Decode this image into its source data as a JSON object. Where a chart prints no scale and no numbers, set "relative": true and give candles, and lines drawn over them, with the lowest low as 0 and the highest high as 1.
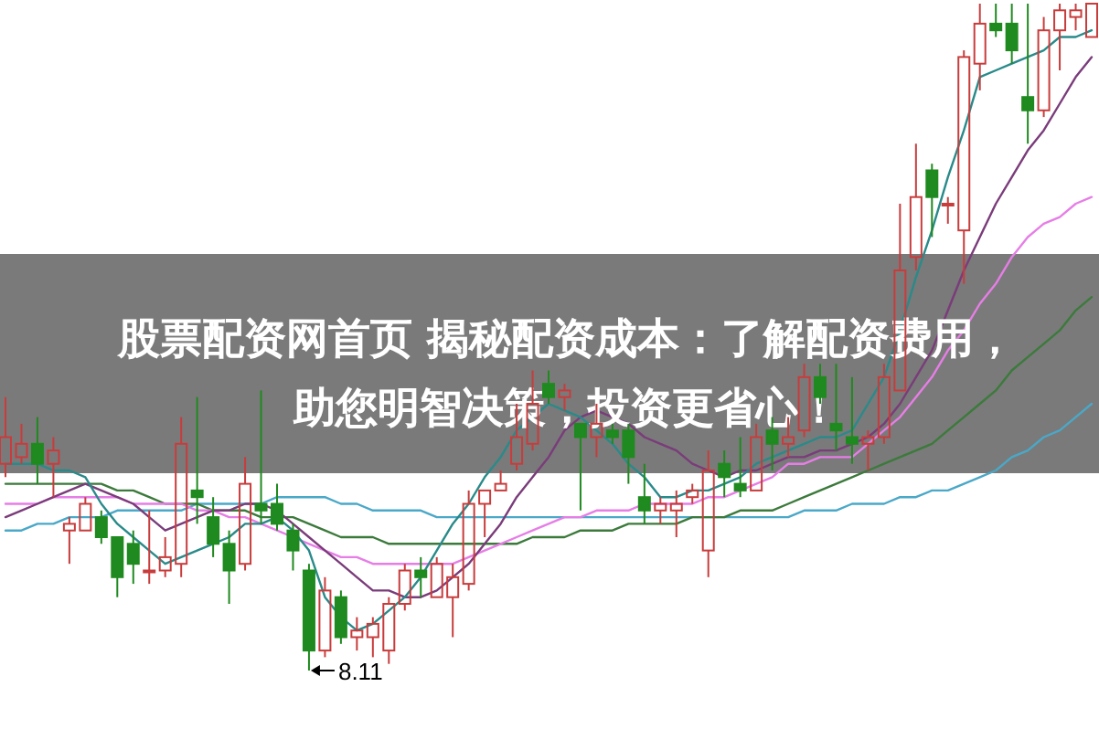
{
  "chart_data": {
    "type": "candlestick",
    "relative": true,
    "title": "股票配资网首页 揭秘配资成本：了解配资费用，助您明智决策，投资更省心！",
    "categories": [
      null,
      null,
      null,
      null,
      null,
      null,
      null,
      null,
      null,
      null,
      null,
      null,
      null,
      null,
      null,
      null,
      null,
      null,
      null,
      null,
      null,
      null,
      null,
      null,
      null,
      null,
      null,
      null,
      null,
      null,
      null,
      null,
      null,
      null,
      null,
      null,
      null,
      null,
      null,
      null,
      null,
      null,
      null,
      null,
      null,
      null,
      null,
      null,
      null,
      null,
      null,
      null,
      null,
      null,
      null,
      null,
      null,
      null,
      null,
      null,
      null,
      null,
      null,
      null,
      null,
      null,
      null,
      null,
      null
    ],
    "ohlc": [
      [
        0.31,
        0.41,
        0.29,
        0.35
      ],
      [
        0.32,
        0.37,
        0.31,
        0.34
      ],
      [
        0.34,
        0.38,
        0.28,
        0.31
      ],
      [
        0.31,
        0.35,
        0.26,
        0.33
      ],
      [
        0.21,
        0.23,
        0.16,
        0.22
      ],
      [
        0.21,
        0.26,
        0.21,
        0.25
      ],
      [
        0.23,
        0.24,
        0.19,
        0.2
      ],
      [
        0.2,
        0.2,
        0.11,
        0.14
      ],
      [
        0.19,
        0.21,
        0.13,
        0.16
      ],
      [
        0.15,
        0.24,
        0.13,
        0.15
      ],
      [
        0.15,
        0.2,
        0.14,
        0.17
      ],
      [
        0.16,
        0.38,
        0.14,
        0.34
      ],
      [
        0.27,
        0.41,
        0.22,
        0.26
      ],
      [
        0.23,
        0.26,
        0.17,
        0.19
      ],
      [
        0.19,
        0.21,
        0.1,
        0.15
      ],
      [
        0.16,
        0.32,
        0.15,
        0.28
      ],
      [
        0.25,
        0.42,
        0.22,
        0.24
      ],
      [
        0.25,
        0.28,
        0.21,
        0.22
      ],
      [
        0.21,
        0.22,
        0.15,
        0.18
      ],
      [
        0.15,
        0.16,
        0,
        0.03
      ],
      [
        0.03,
        0.14,
        0.02,
        0.12
      ],
      [
        0.11,
        0.12,
        0.04,
        0.05
      ],
      [
        0.05,
        0.08,
        0.03,
        0.06
      ],
      [
        0.05,
        0.08,
        0.02,
        0.07
      ],
      [
        0.03,
        0.11,
        0.01,
        0.1
      ],
      [
        0.1,
        0.16,
        0.09,
        0.15
      ],
      [
        0.15,
        0.17,
        0.11,
        0.14
      ],
      [
        0.11,
        0.17,
        0.11,
        0.16
      ],
      [
        0.11,
        0.16,
        0.05,
        0.14
      ],
      [
        0.13,
        0.27,
        0.12,
        0.25
      ],
      [
        0.25,
        0.27,
        0.2,
        0.27
      ],
      [
        0.27,
        0.3,
        0.27,
        0.28
      ],
      [
        0.31,
        0.4,
        0.3,
        0.35
      ],
      [
        0.34,
        0.45,
        0.33,
        0.4
      ],
      [
        0.43,
        0.45,
        0.4,
        0.41
      ],
      [
        0.41,
        0.43,
        0.39,
        0.42
      ],
      [
        0.37,
        0.37,
        0.24,
        0.35
      ],
      [
        0.35,
        0.4,
        0.32,
        0.37
      ],
      [
        0.36,
        0.37,
        0.34,
        0.35
      ],
      [
        0.36,
        0.37,
        0.28,
        0.32
      ],
      [
        0.26,
        0.31,
        0.22,
        0.24
      ],
      [
        0.24,
        0.26,
        0.22,
        0.25
      ],
      [
        0.24,
        0.27,
        0.2,
        0.25
      ],
      [
        0.26,
        0.28,
        0.25,
        0.27
      ],
      [
        0.18,
        0.33,
        0.14,
        0.3
      ],
      [
        0.31,
        0.33,
        0.26,
        0.29
      ],
      [
        0.28,
        0.35,
        0.26,
        0.27
      ],
      [
        0.27,
        0.37,
        0.27,
        0.35
      ],
      [
        0.36,
        0.38,
        0.3,
        0.34
      ],
      [
        0.34,
        0.38,
        0.32,
        0.35
      ],
      [
        0.36,
        0.46,
        0.35,
        0.44
      ],
      [
        0.44,
        0.46,
        0.4,
        0.41
      ],
      [
        0.37,
        0.46,
        0.33,
        0.36
      ],
      [
        0.35,
        0.44,
        0.31,
        0.34
      ],
      [
        0.34,
        0.36,
        0.3,
        0.35
      ],
      [
        0.35,
        0.46,
        0.34,
        0.44
      ],
      [
        0.42,
        0.7,
        0.42,
        0.6
      ],
      [
        0.62,
        0.79,
        0.6,
        0.71
      ],
      [
        0.75,
        0.76,
        0.65,
        0.71
      ],
      [
        0.7,
        0.71,
        0.67,
        0.7
      ],
      [
        0.66,
        0.93,
        0.58,
        0.92
      ],
      [
        0.91,
        1.0,
        0.87,
        0.97
      ],
      [
        0.97,
        1.0,
        0.95,
        0.96
      ],
      [
        0.97,
        1.0,
        0.91,
        0.93
      ],
      [
        0.86,
        1.0,
        0.79,
        0.84
      ],
      [
        0.84,
        0.98,
        0.83,
        0.96
      ],
      [
        0.96,
        1.0,
        0.9,
        0.99
      ],
      [
        0.98,
        1.0,
        0.96,
        0.99
      ],
      [
        0.95,
        1.0,
        0.95,
        1.0
      ]
    ],
    "series": [
      {
        "type": "line",
        "color": "#4aa8c8",
        "values": [
          0.21,
          0.21,
          0.22,
          0.22,
          0.23,
          0.23,
          0.23,
          0.24,
          0.24,
          0.24,
          0.24,
          0.24,
          0.25,
          0.25,
          0.25,
          0.25,
          0.25,
          0.26,
          0.26,
          0.26,
          0.26,
          0.25,
          0.25,
          0.24,
          0.24,
          0.24,
          0.24,
          0.23,
          0.23,
          0.23,
          0.23,
          0.23,
          0.23,
          0.23,
          0.23,
          0.23,
          0.23,
          0.23,
          0.23,
          0.23,
          0.23,
          0.23,
          0.23,
          0.23,
          0.23,
          0.23,
          0.23,
          0.23,
          0.23,
          0.23,
          0.24,
          0.24,
          0.24,
          0.25,
          0.25,
          0.25,
          0.26,
          0.26,
          0.27,
          0.27,
          0.28,
          0.29,
          0.3,
          0.32,
          0.33,
          0.35,
          0.36,
          0.38,
          0.4
        ]
      },
      {
        "type": "line",
        "color": "#3c7a3c",
        "values": [
          0.28,
          0.28,
          0.28,
          0.28,
          0.28,
          0.28,
          0.28,
          0.27,
          0.27,
          0.26,
          0.25,
          0.25,
          0.25,
          0.24,
          0.24,
          0.24,
          0.23,
          0.23,
          0.23,
          0.22,
          0.21,
          0.2,
          0.2,
          0.2,
          0.19,
          0.19,
          0.19,
          0.19,
          0.19,
          0.19,
          0.19,
          0.19,
          0.19,
          0.2,
          0.2,
          0.2,
          0.21,
          0.21,
          0.21,
          0.22,
          0.22,
          0.22,
          0.22,
          0.23,
          0.23,
          0.23,
          0.24,
          0.24,
          0.24,
          0.25,
          0.26,
          0.27,
          0.28,
          0.29,
          0.3,
          0.31,
          0.32,
          0.33,
          0.34,
          0.36,
          0.38,
          0.4,
          0.42,
          0.45,
          0.47,
          0.49,
          0.51,
          0.54,
          0.56
        ]
      },
      {
        "type": "line",
        "color": "#e67ee6",
        "values": [
          0.25,
          0.25,
          0.25,
          0.26,
          0.26,
          0.26,
          0.26,
          0.26,
          0.25,
          0.25,
          0.25,
          0.25,
          0.24,
          0.24,
          0.23,
          0.23,
          0.22,
          0.21,
          0.2,
          0.19,
          0.18,
          0.17,
          0.17,
          0.16,
          0.16,
          0.16,
          0.16,
          0.16,
          0.16,
          0.17,
          0.18,
          0.19,
          0.2,
          0.21,
          0.22,
          0.23,
          0.23,
          0.24,
          0.24,
          0.24,
          0.25,
          0.25,
          0.25,
          0.25,
          0.26,
          0.26,
          0.27,
          0.28,
          0.29,
          0.31,
          0.31,
          0.32,
          0.32,
          0.32,
          0.34,
          0.36,
          0.38,
          0.41,
          0.44,
          0.48,
          0.51,
          0.55,
          0.58,
          0.62,
          0.65,
          0.67,
          0.68,
          0.7,
          0.71
        ]
      },
      {
        "type": "line",
        "color": "#7a3c7a",
        "values": [
          0.23,
          0.24,
          0.25,
          0.26,
          0.27,
          0.28,
          0.27,
          0.26,
          0.25,
          0.23,
          0.21,
          0.22,
          0.23,
          0.24,
          0.24,
          0.25,
          0.25,
          0.24,
          0.22,
          0.2,
          0.18,
          0.16,
          0.14,
          0.12,
          0.12,
          0.11,
          0.11,
          0.12,
          0.14,
          0.16,
          0.19,
          0.22,
          0.26,
          0.29,
          0.32,
          0.36,
          0.38,
          0.39,
          0.38,
          0.37,
          0.35,
          0.34,
          0.33,
          0.31,
          0.3,
          0.29,
          0.3,
          0.3,
          0.31,
          0.32,
          0.32,
          0.33,
          0.33,
          0.34,
          0.35,
          0.37,
          0.4,
          0.44,
          0.48,
          0.54,
          0.6,
          0.65,
          0.7,
          0.74,
          0.78,
          0.81,
          0.85,
          0.89,
          0.92
        ]
      },
      {
        "type": "line",
        "color": "#2a8a8a",
        "values": [
          0.31,
          0.31,
          0.31,
          0.3,
          0.3,
          0.29,
          0.25,
          0.22,
          0.2,
          0.18,
          0.16,
          0.17,
          0.18,
          0.19,
          0.2,
          0.22,
          0.22,
          0.23,
          0.21,
          0.18,
          0.11,
          0.08,
          0.06,
          0.07,
          0.09,
          0.11,
          0.14,
          0.18,
          0.22,
          0.25,
          0.29,
          0.32,
          0.36,
          0.38,
          0.4,
          0.39,
          0.38,
          0.36,
          0.34,
          0.31,
          0.29,
          0.26,
          0.26,
          0.27,
          0.27,
          0.28,
          0.29,
          0.31,
          0.32,
          0.33,
          0.34,
          0.35,
          0.35,
          0.36,
          0.4,
          0.44,
          0.51,
          0.59,
          0.66,
          0.74,
          0.81,
          0.89,
          0.9,
          0.91,
          0.92,
          0.93,
          0.95,
          0.95,
          0.96
        ]
      }
    ],
    "annotations": [
      "8.11"
    ]
  }
}
